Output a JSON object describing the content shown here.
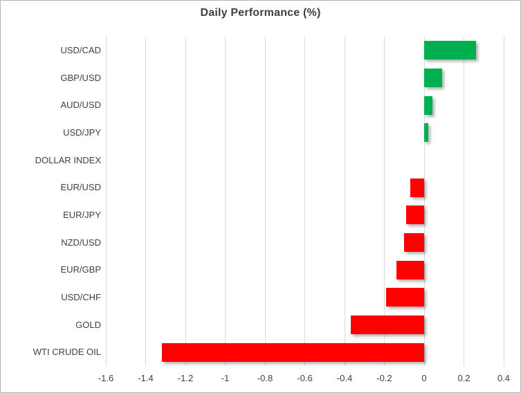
{
  "chart_data": {
    "type": "bar",
    "orientation": "horizontal",
    "title": "Daily Performance (%)",
    "categories": [
      "USD/CAD",
      "GBP/USD",
      "AUD/USD",
      "USD/JPY",
      "DOLLAR INDEX",
      "EUR/USD",
      "EUR/JPY",
      "NZD/USD",
      "EUR/GBP",
      "USD/CHF",
      "GOLD",
      "WTI CRUDE OIL"
    ],
    "values": [
      0.26,
      0.09,
      0.04,
      0.02,
      0.0,
      -0.07,
      -0.09,
      -0.1,
      -0.14,
      -0.19,
      -0.37,
      -1.32
    ],
    "xlabel": "",
    "ylabel": "",
    "xlim": [
      -1.6,
      0.4
    ],
    "x_ticks": [
      -1.6,
      -1.4,
      -1.2,
      -1.0,
      -0.8,
      -0.6,
      -0.4,
      -0.2,
      0,
      0.2,
      0.4
    ],
    "x_tick_labels": [
      "-1.6",
      "-1.4",
      "-1.2",
      "-1",
      "-0.8",
      "-0.6",
      "-0.4",
      "-0.2",
      "0",
      "0.2",
      "0.4"
    ],
    "grid": "vertical-only",
    "legend": "none",
    "colors": {
      "positive_bar": "#00B050",
      "negative_bar": "#FF0000",
      "gridline": "#D9D9D9",
      "title_text": "#404040",
      "label_text": "#404040",
      "tick_text": "#404040",
      "border": "#B3B3B3",
      "background": "#FFFFFF"
    }
  }
}
